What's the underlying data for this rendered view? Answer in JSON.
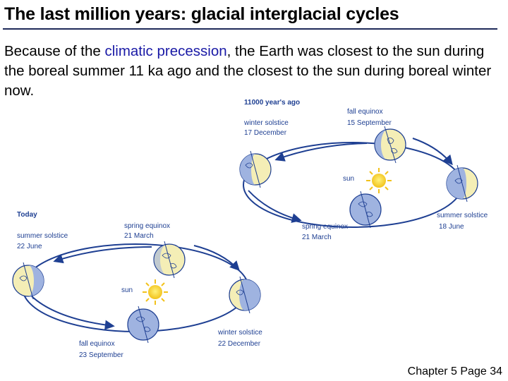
{
  "title": "The last million years: glacial interglacial cycles",
  "body": {
    "pre": "Because of the ",
    "highlight": "climatic precession",
    "post": ", the Earth was closest to the sun during the boreal summer 11 ka ago and the closest to the sun during boreal winter now."
  },
  "diagram_past": {
    "header": "11000 year's ago",
    "fall_equinox": {
      "name": "fall equinox",
      "date": "15 September"
    },
    "winter_solstice": {
      "name": "winter solstice",
      "date": "17 December"
    },
    "summer_solstice": {
      "name": "summer solstice",
      "date": "18 June"
    },
    "spring_equinox": {
      "name": "spring equinox",
      "date": "21 March"
    },
    "sun": "sun"
  },
  "diagram_today": {
    "header": "Today",
    "summer_solstice": {
      "name": "summer solstice",
      "date": "22 June"
    },
    "spring_equinox": {
      "name": "spring equinox",
      "date": "21 March"
    },
    "winter_solstice": {
      "name": "winter solstice",
      "date": "22 December"
    },
    "fall_equinox": {
      "name": "fall equinox",
      "date": "23 September"
    },
    "sun": "sun"
  },
  "colors": {
    "earth_light": "#f4eeb6",
    "earth_dark": "#9fb3e0",
    "orbit": "#1e3f92",
    "sun": "#f2c21b"
  },
  "footer": "Chapter 5 Page 34"
}
